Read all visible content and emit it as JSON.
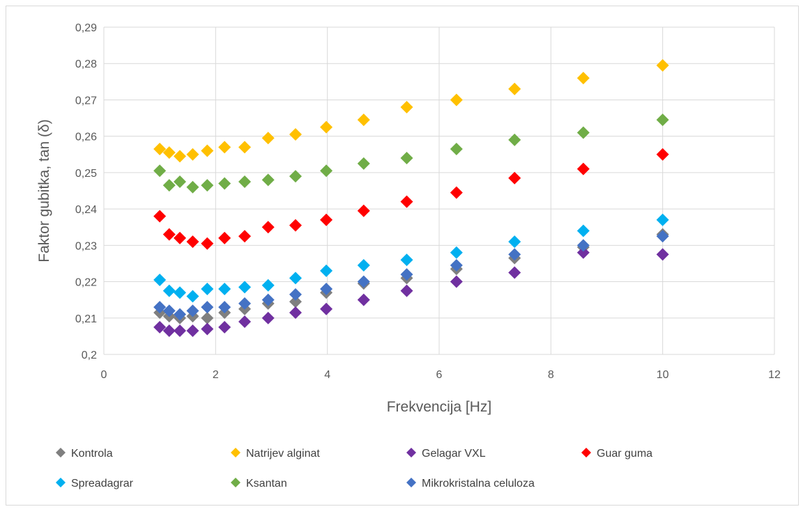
{
  "chart_data": {
    "type": "scatter",
    "title": "",
    "xlabel": "Frekvencija [Hz]",
    "ylabel": "Faktor gubitka, tan (δ)",
    "xlim": [
      0,
      12
    ],
    "ylim": [
      0.2,
      0.29
    ],
    "x_ticks": [
      0,
      2,
      4,
      6,
      8,
      10,
      12
    ],
    "x_tick_labels": [
      "0",
      "2",
      "4",
      "6",
      "8",
      "10",
      "12"
    ],
    "y_ticks": [
      0.2,
      0.21,
      0.22,
      0.23,
      0.24,
      0.25,
      0.26,
      0.27,
      0.28,
      0.29
    ],
    "y_tick_labels": [
      "0,2",
      "0,21",
      "0,22",
      "0,23",
      "0,24",
      "0,25",
      "0,26",
      "0,27",
      "0,28",
      "0,29"
    ],
    "grid": true,
    "legend_position": "bottom",
    "x": [
      1,
      1.17,
      1.36,
      1.59,
      1.85,
      2.16,
      2.52,
      2.94,
      3.43,
      3.98,
      4.65,
      5.42,
      6.31,
      7.35,
      8.58,
      10
    ],
    "series": [
      {
        "name": "Kontrola",
        "color": "#7f7f7f",
        "values": [
          0.2115,
          0.2105,
          0.21,
          0.2105,
          0.21,
          0.2115,
          0.2125,
          0.214,
          0.2145,
          0.217,
          0.2195,
          0.221,
          0.2235,
          0.2265,
          0.2295,
          0.233
        ]
      },
      {
        "name": "Natrijev alginat",
        "color": "#ffc000",
        "values": [
          0.2565,
          0.2555,
          0.2545,
          0.255,
          0.256,
          0.257,
          0.257,
          0.2595,
          0.2605,
          0.2625,
          0.2645,
          0.268,
          0.27,
          0.273,
          0.276,
          0.2795
        ]
      },
      {
        "name": "Gelagar VXL",
        "color": "#7030a0",
        "values": [
          0.2075,
          0.2065,
          0.2065,
          0.2065,
          0.207,
          0.2075,
          0.209,
          0.21,
          0.2115,
          0.2125,
          0.215,
          0.2175,
          0.22,
          0.2225,
          0.228,
          0.2275
        ]
      },
      {
        "name": "Guar guma",
        "color": "#ff0000",
        "values": [
          0.238,
          0.233,
          0.232,
          0.231,
          0.2305,
          0.232,
          0.2325,
          0.235,
          0.2355,
          0.237,
          0.2395,
          0.242,
          0.2445,
          0.2485,
          0.251,
          0.255
        ]
      },
      {
        "name": "Spreadagrar",
        "color": "#00b0f0",
        "values": [
          0.2205,
          0.2175,
          0.217,
          0.216,
          0.218,
          0.218,
          0.2185,
          0.219,
          0.221,
          0.223,
          0.2245,
          0.226,
          0.228,
          0.231,
          0.234,
          0.237
        ]
      },
      {
        "name": "Ksantan",
        "color": "#70ad47",
        "values": [
          0.2505,
          0.2465,
          0.2475,
          0.246,
          0.2465,
          0.247,
          0.2475,
          0.248,
          0.249,
          0.2505,
          0.2525,
          0.254,
          0.2565,
          0.259,
          0.261,
          0.2645
        ]
      },
      {
        "name": "Mikrokristalna celuloza",
        "color": "#4472c4",
        "values": [
          0.213,
          0.212,
          0.211,
          0.212,
          0.213,
          0.213,
          0.214,
          0.215,
          0.2165,
          0.218,
          0.22,
          0.222,
          0.2245,
          0.2275,
          0.23,
          0.2325
        ]
      }
    ]
  }
}
